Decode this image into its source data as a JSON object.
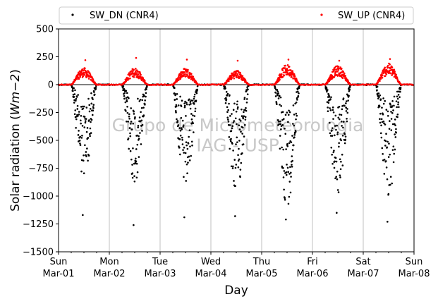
{
  "chart_data": {
    "type": "scatter",
    "title": "",
    "xlabel": "Day",
    "ylabel": "Solar radiation (Wm−2)",
    "ylim": [
      -1500,
      500
    ],
    "xlim_days": [
      0,
      7
    ],
    "yticks": [
      "−1500",
      "−1250",
      "−1000",
      "−750",
      "−500",
      "−250",
      "0",
      "250",
      "500"
    ],
    "xticks": [
      {
        "day": "Sun",
        "date": "Mar-01"
      },
      {
        "day": "Mon",
        "date": "Mar-02"
      },
      {
        "day": "Tue",
        "date": "Mar-03"
      },
      {
        "day": "Wed",
        "date": "Mar-04"
      },
      {
        "day": "Thu",
        "date": "Mar-05"
      },
      {
        "day": "Fri",
        "date": "Mar-06"
      },
      {
        "day": "Sat",
        "date": "Mar-07"
      },
      {
        "day": "Sun",
        "date": "Mar-08"
      }
    ],
    "grid": "vertical at day boundaries",
    "zero_line": true,
    "legend_position": "top, above plot",
    "watermark": [
      "Grupo de Micrometeorologia",
      "IAG - USP"
    ],
    "series": [
      {
        "name": "SW_DN (CNR4)",
        "color": "#000000",
        "daily_peak_min": [
          -1170,
          -1260,
          -1190,
          -1180,
          -1210,
          -1150,
          -1230
        ],
        "daily_typical_min": [
          -850,
          -900,
          -950,
          -1000,
          -1100,
          -1000,
          -1000
        ],
        "daylight_hours_local": [
          6,
          18
        ]
      },
      {
        "name": "SW_UP (CNR4)",
        "color": "#ff0000",
        "daily_peak_max": [
          220,
          240,
          225,
          215,
          225,
          215,
          230
        ],
        "daily_typical_max": [
          150,
          150,
          150,
          130,
          180,
          170,
          190
        ],
        "daylight_hours_local": [
          6,
          18
        ]
      }
    ]
  }
}
